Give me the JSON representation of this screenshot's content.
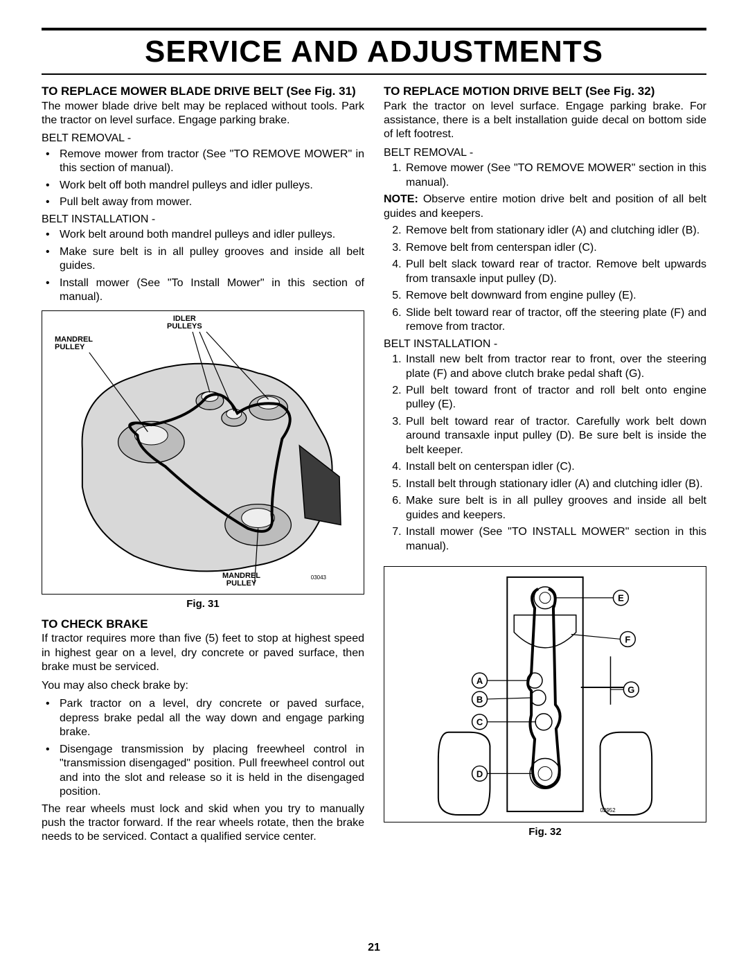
{
  "page_title": "SERVICE AND ADJUSTMENTS",
  "page_number": "21",
  "left": {
    "h1": "TO REPLACE MOWER BLADE DRIVE BELT (See Fig. 31)",
    "intro": "The mower blade drive belt may be replaced without tools. Park the tractor on level surface. Engage parking brake.",
    "belt_removal_h": "BELT REMOVAL -",
    "removal": [
      "Remove mower from tractor (See \"TO REMOVE MOWER\" in this section of manual).",
      "Work belt off both mandrel pulleys and idler pulleys.",
      "Pull belt away from mower."
    ],
    "belt_install_h": "BELT INSTALLATION -",
    "install": [
      "Work belt around both mandrel pulleys and idler pulleys.",
      "Make sure belt is in all pulley grooves and inside all belt guides.",
      "Install mower (See \"To Install Mower\" in this section of manual)."
    ],
    "fig31": {
      "cap": "Fig. 31",
      "labels": {
        "idler": "IDLER\nPULLEYS",
        "mandrel_l": "MANDREL\nPULLEY",
        "mandrel_r": "MANDREL\nPULLEY",
        "num": "03043"
      }
    },
    "brake_h": "TO CHECK BRAKE",
    "brake_p1": "If tractor requires more than five (5) feet to stop at highest speed in highest gear on a level, dry concrete or paved surface, then brake must be serviced.",
    "brake_p2": "You may also check brake by:",
    "brake_list": [
      "Park tractor on a level, dry concrete or paved surface, depress brake pedal all the way down and engage parking brake.",
      "Disengage transmission by placing freewheel control in \"transmission disengaged\" position. Pull freewheel control out and into the slot and release so it is held in the disengaged position."
    ],
    "brake_p3": "The rear wheels must lock and skid when you try to manually push the tractor forward. If the rear wheels rotate, then the brake needs to be serviced. Contact a qualified service center."
  },
  "right": {
    "h1": "TO REPLACE MOTION DRIVE BELT (See Fig. 32)",
    "intro": "Park the tractor on level surface.  Engage parking brake. For assistance, there is a belt installation guide decal on bottom side of left footrest.",
    "belt_removal_h": "BELT REMOVAL -",
    "removal1": [
      "Remove mower (See \"TO REMOVE MOWER\" section in this manual)."
    ],
    "note": "Observe entire motion drive belt and position of all belt guides and keepers.",
    "removal2": [
      "Remove belt from stationary idler (A) and clutching idler (B).",
      "Remove belt from centerspan idler (C).",
      "Pull belt slack toward rear of tractor.  Remove belt upwards from transaxle input pulley (D).",
      "Remove belt downward from engine pulley (E).",
      "Slide belt toward rear of tractor, off the steering plate (F) and remove from tractor."
    ],
    "belt_install_h": "BELT INSTALLATION -",
    "install": [
      "Install new belt from tractor rear to front, over the steering plate (F) and above clutch brake pedal shaft (G).",
      "Pull belt toward front of tractor and roll belt onto engine pulley (E).",
      "Pull belt toward rear of tractor. Carefully work belt down around transaxle input pulley (D). Be sure belt is inside the belt keeper.",
      "Install belt on centerspan idler (C).",
      "Install belt through stationary idler (A) and clutching idler (B).",
      "Make sure belt is in all pulley grooves and inside all belt guides and keepers.",
      "Install mower (See \"TO INSTALL MOWER\" section in this manual)."
    ],
    "fig32": {
      "cap": "Fig. 32",
      "num": "02952",
      "callouts": [
        "A",
        "B",
        "C",
        "D",
        "E",
        "F",
        "G"
      ]
    }
  }
}
